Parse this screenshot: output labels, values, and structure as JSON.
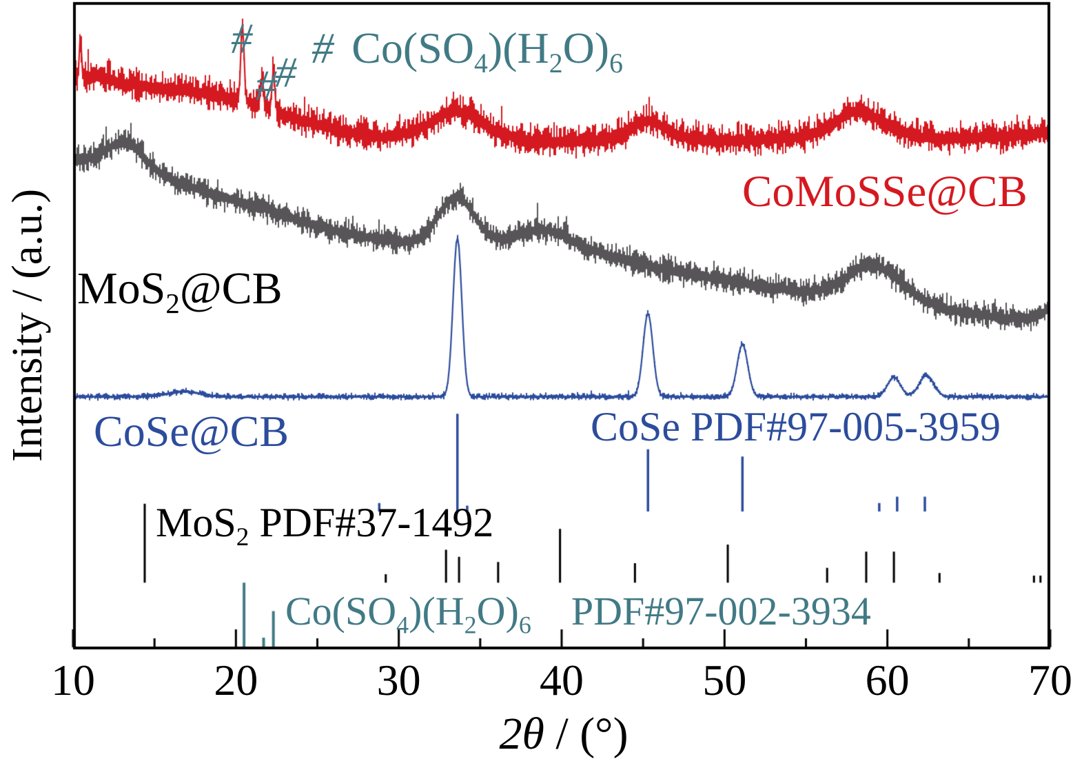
{
  "figure": {
    "ylabel": "Intensity / (a.u.)",
    "xlabel_italic": "2θ",
    "xlabel_rest": " / (°)",
    "background": "#ffffff",
    "frame_color": "#000000"
  },
  "chart_data": {
    "type": "line",
    "title": "",
    "xlabel": "2θ / (°)",
    "ylabel": "Intensity / (a.u.)",
    "xlim": [
      10,
      70
    ],
    "ylim_au": [
      0,
      100
    ],
    "grid": false,
    "legend_position": "in-plot text labels",
    "x_major_ticks": [
      10,
      20,
      30,
      40,
      50,
      60,
      70
    ],
    "x_minor_ticks": [
      15,
      25,
      35,
      45,
      55,
      65
    ],
    "series": [
      {
        "name": "CoMoSSe@CB",
        "color": "#d51920",
        "label_color": "#d51920",
        "noise_amplitude_au": 2.6,
        "baseline_au": [
          [
            10,
            87.8
          ],
          [
            11.5,
            88.4
          ],
          [
            13,
            87.3
          ],
          [
            15,
            86.7
          ],
          [
            17,
            86.3
          ],
          [
            19,
            85.4
          ],
          [
            21,
            84.3
          ],
          [
            23,
            82.4
          ],
          [
            25,
            80.9
          ],
          [
            27,
            79.7
          ],
          [
            29,
            79.0
          ],
          [
            31,
            79.8
          ],
          [
            33,
            81.4
          ],
          [
            34.5,
            81.2
          ],
          [
            36,
            79.6
          ],
          [
            38,
            78.5
          ],
          [
            40,
            78.3
          ],
          [
            42,
            78.5
          ],
          [
            44,
            79.4
          ],
          [
            45.3,
            80.3
          ],
          [
            47,
            79.2
          ],
          [
            49,
            78.5
          ],
          [
            51,
            78.5
          ],
          [
            53,
            78.7
          ],
          [
            55,
            79.0
          ],
          [
            57,
            80.6
          ],
          [
            58.3,
            81.4
          ],
          [
            60,
            80.1
          ],
          [
            62,
            79.0
          ],
          [
            64,
            78.8
          ],
          [
            66,
            79.0
          ],
          [
            68,
            79.2
          ],
          [
            70,
            79.9
          ]
        ],
        "peaks_two_theta_height_sigma": [
          [
            10.45,
            6.5,
            0.07
          ],
          [
            20.4,
            12.0,
            0.1
          ],
          [
            21.6,
            4.6,
            0.09
          ],
          [
            22.3,
            6.2,
            0.09
          ],
          [
            33.5,
            1.6,
            1.2
          ],
          [
            45.3,
            1.3,
            1.0
          ],
          [
            58.3,
            1.8,
            1.4
          ]
        ]
      },
      {
        "name": "MoS_{2}@CB",
        "color": "#585558",
        "label_color": "#000000",
        "noise_amplitude_au": 2.2,
        "baseline_au": [
          [
            10,
            75.6
          ],
          [
            12,
            75.0
          ],
          [
            14,
            73.5
          ],
          [
            16,
            72.4
          ],
          [
            18,
            70.7
          ],
          [
            20,
            69.2
          ],
          [
            22,
            67.8
          ],
          [
            24,
            66.0
          ],
          [
            26,
            64.6
          ],
          [
            28,
            63.6
          ],
          [
            30,
            62.8
          ],
          [
            33,
            62.2
          ],
          [
            36,
            62.8
          ],
          [
            38,
            63.3
          ],
          [
            40,
            62.8
          ],
          [
            43,
            60.7
          ],
          [
            46,
            58.8
          ],
          [
            49,
            57.4
          ],
          [
            52,
            56.1
          ],
          [
            55,
            55.1
          ],
          [
            58,
            54.3
          ],
          [
            61,
            54.3
          ],
          [
            64,
            52.2
          ],
          [
            67,
            51.1
          ],
          [
            69,
            51.1
          ],
          [
            70,
            52.6
          ]
        ],
        "peaks_two_theta_height_sigma": [
          [
            13.3,
            4.2,
            1.1
          ],
          [
            33.5,
            7.5,
            1.1
          ],
          [
            39.0,
            1.6,
            1.2
          ],
          [
            59.0,
            5.0,
            1.5
          ]
        ]
      },
      {
        "name": "CoSe@CB",
        "color": "#2c4c9c",
        "label_color": "#2c4c9c",
        "noise_amplitude_au": 0.55,
        "baseline_au": [
          [
            10,
            39.0
          ],
          [
            70,
            39.0
          ]
        ],
        "peaks_two_theta_height_sigma": [
          [
            16.8,
            0.8,
            1.0
          ],
          [
            33.6,
            24.6,
            0.27
          ],
          [
            45.3,
            12.9,
            0.3
          ],
          [
            51.1,
            8.1,
            0.33
          ],
          [
            60.4,
            3.0,
            0.4
          ],
          [
            62.4,
            3.3,
            0.45
          ]
        ]
      }
    ],
    "stick_patterns": [
      {
        "name": "CoSe PDF#97-005-3959",
        "phase": "CoSe",
        "pdf_number": "PDF#97-005-3959",
        "color": "#2c4c9c",
        "label_color": "#2c4c9c",
        "baseline_au": 21.3,
        "line_width": 3.5,
        "peaks_two_theta_height": [
          [
            28.8,
            1.3
          ],
          [
            33.6,
            15.1
          ],
          [
            34.2,
            0.9
          ],
          [
            45.3,
            9.6
          ],
          [
            51.1,
            8.5
          ],
          [
            59.5,
            1.3
          ],
          [
            60.6,
            2.3
          ],
          [
            62.3,
            2.3
          ]
        ]
      },
      {
        "name": "MoS_{2} PDF#37-1492",
        "phase": "MoS_{2}",
        "pdf_number": "PDF#37-1492",
        "color": "#000000",
        "label_color": "#000000",
        "baseline_au": 10.3,
        "line_width": 3,
        "peaks_two_theta_height": [
          [
            14.4,
            12.2
          ],
          [
            29.2,
            1.3
          ],
          [
            32.9,
            5.1
          ],
          [
            33.7,
            4.0
          ],
          [
            36.1,
            3.2
          ],
          [
            39.9,
            8.3
          ],
          [
            44.5,
            3.0
          ],
          [
            50.2,
            5.9
          ],
          [
            56.3,
            2.3
          ],
          [
            58.7,
            4.8
          ],
          [
            60.4,
            4.8
          ],
          [
            63.2,
            1.5
          ],
          [
            69.0,
            1.1
          ],
          [
            69.4,
            1.1
          ]
        ]
      },
      {
        "name": "Co(SO_{4})(H_{2}O)_{6} PDF#97-002-3934",
        "phase": "Co(SO_{4})(H_{2}O)_{6}",
        "pdf_number": "PDF#97-002-3934",
        "color": "#417a85",
        "label_color": "#417a85",
        "baseline_au": 0.4,
        "line_width": 4,
        "peaks_two_theta_height": [
          [
            20.5,
            9.9
          ],
          [
            21.7,
            1.4
          ],
          [
            22.3,
            5.5
          ]
        ]
      }
    ],
    "annotations": {
      "color": "#417a85",
      "hash_marks": [
        {
          "symbol": "#",
          "two_theta": 20.35,
          "top_au": 97.6
        },
        {
          "symbol": "#",
          "two_theta": 21.85,
          "top_au": 90.3
        },
        {
          "symbol": "#",
          "two_theta": 23.05,
          "top_au": 92.3
        }
      ],
      "hash_legend": {
        "symbol": "#",
        "formula": "Co(SO_{4})(H_{2}O)_{6}",
        "two_theta": 24.65,
        "top_au": 96.3
      }
    }
  }
}
